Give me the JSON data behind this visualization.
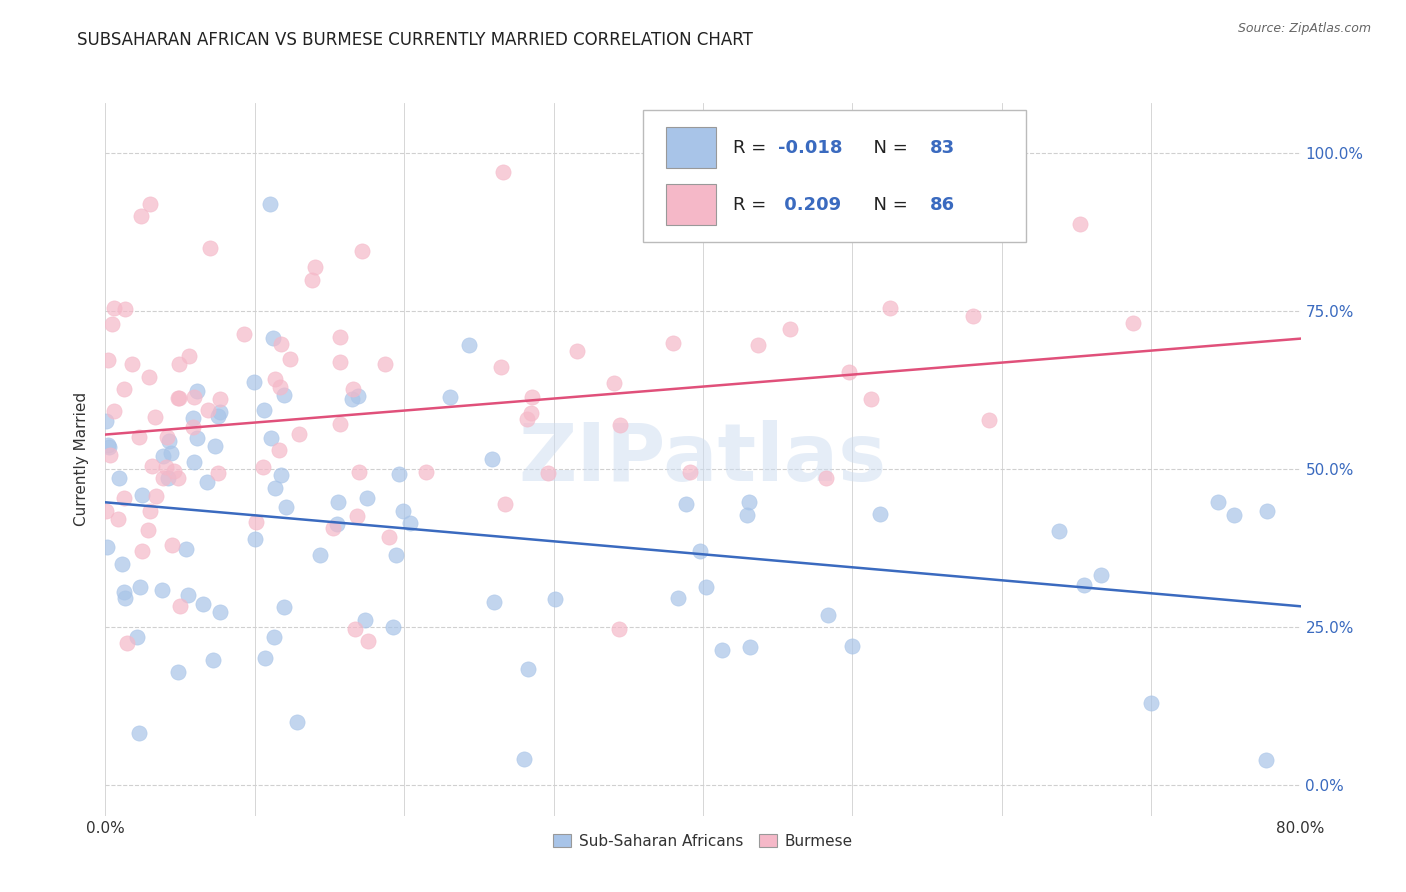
{
  "title": "SUBSAHARAN AFRICAN VS BURMESE CURRENTLY MARRIED CORRELATION CHART",
  "source": "Source: ZipAtlas.com",
  "ylabel": "Currently Married",
  "ytick_labels": [
    "0.0%",
    "25.0%",
    "50.0%",
    "75.0%",
    "100.0%"
  ],
  "ytick_values": [
    0.0,
    0.25,
    0.5,
    0.75,
    1.0
  ],
  "xtick_labels": [
    "0.0%",
    "",
    "",
    "",
    "",
    "",
    "",
    "",
    "80.0%"
  ],
  "xtick_values": [
    0.0,
    0.1,
    0.2,
    0.3,
    0.4,
    0.5,
    0.6,
    0.7,
    0.8
  ],
  "xlim": [
    0.0,
    0.8
  ],
  "ylim": [
    -0.05,
    1.08
  ],
  "legend_labels": [
    "Sub-Saharan Africans",
    "Burmese"
  ],
  "blue_color": "#a8c4e8",
  "pink_color": "#f5b8c8",
  "blue_line_color": "#3a6abf",
  "pink_line_color": "#e0507a",
  "blue_R": -0.018,
  "blue_N": 83,
  "pink_R": 0.209,
  "pink_N": 86,
  "watermark_text": "ZIPatlas",
  "background_color": "#ffffff",
  "grid_color": "#d0d0d0",
  "title_fontsize": 12,
  "legend_fontsize": 13,
  "blue_seed": 12,
  "pink_seed": 99
}
